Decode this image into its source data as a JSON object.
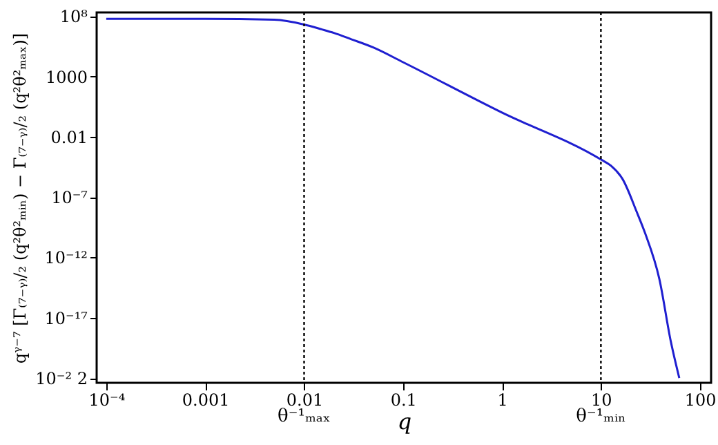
{
  "chart_data": {
    "type": "line",
    "xlabel": "q",
    "ylabel": "qᵞ⁻⁷ [Γ₍₇₋ᵧ₎/₂ (q²θ²ₘᵢₙ) − Γ₍₇₋ᵧ₎/₂ (q²θ²ₘₐₓ)]",
    "log": "xy",
    "grid": false,
    "marker": "none",
    "line_style": "solid",
    "xlim": [
      8e-05,
      130
    ],
    "ylim": [
      4e-23,
      200000000.0
    ],
    "xticks": [
      {
        "value": 0.0001,
        "label": "10⁻⁴"
      },
      0.001,
      0.01,
      0.1,
      1,
      10,
      100
    ],
    "yticks": [
      {
        "value": 100000000.0,
        "label": "10⁸"
      },
      1000,
      0.01,
      {
        "value": 1e-07,
        "label": "10⁻⁷"
      },
      {
        "value": 1e-12,
        "label": "10⁻¹²"
      },
      {
        "value": 1e-17,
        "label": "10⁻¹⁷"
      },
      {
        "value": 1e-22,
        "label": "10⁻² 2"
      }
    ],
    "series": [
      {
        "color": "#1f1fd0",
        "x": [
          0.0001,
          0.001,
          0.005,
          0.01,
          0.015,
          0.02,
          0.03,
          0.05,
          0.1,
          1,
          10,
          12.6,
          16.6,
          23,
          28,
          39,
          51,
          62
        ],
        "values": [
          60000000.0,
          60000000.0,
          50000000.0,
          20000000.0,
          8000000.0,
          4000000.0,
          1200000.0,
          250000.0,
          15000.0,
          1,
          0.00013,
          4e-05,
          3e-06,
          6e-09,
          1e-10,
          1.6e-14,
          1e-19,
          1e-22
        ]
      }
    ],
    "ref_lines": [
      {
        "axis": "x",
        "value": 0.01,
        "label": "θ⁻¹ₘₐₓ",
        "color": "#000000",
        "line_style": "dotted"
      },
      {
        "axis": "x",
        "value": 10,
        "label": "θ⁻¹ₘᵢₙ",
        "color": "#000000",
        "line_style": "dotted"
      }
    ]
  }
}
